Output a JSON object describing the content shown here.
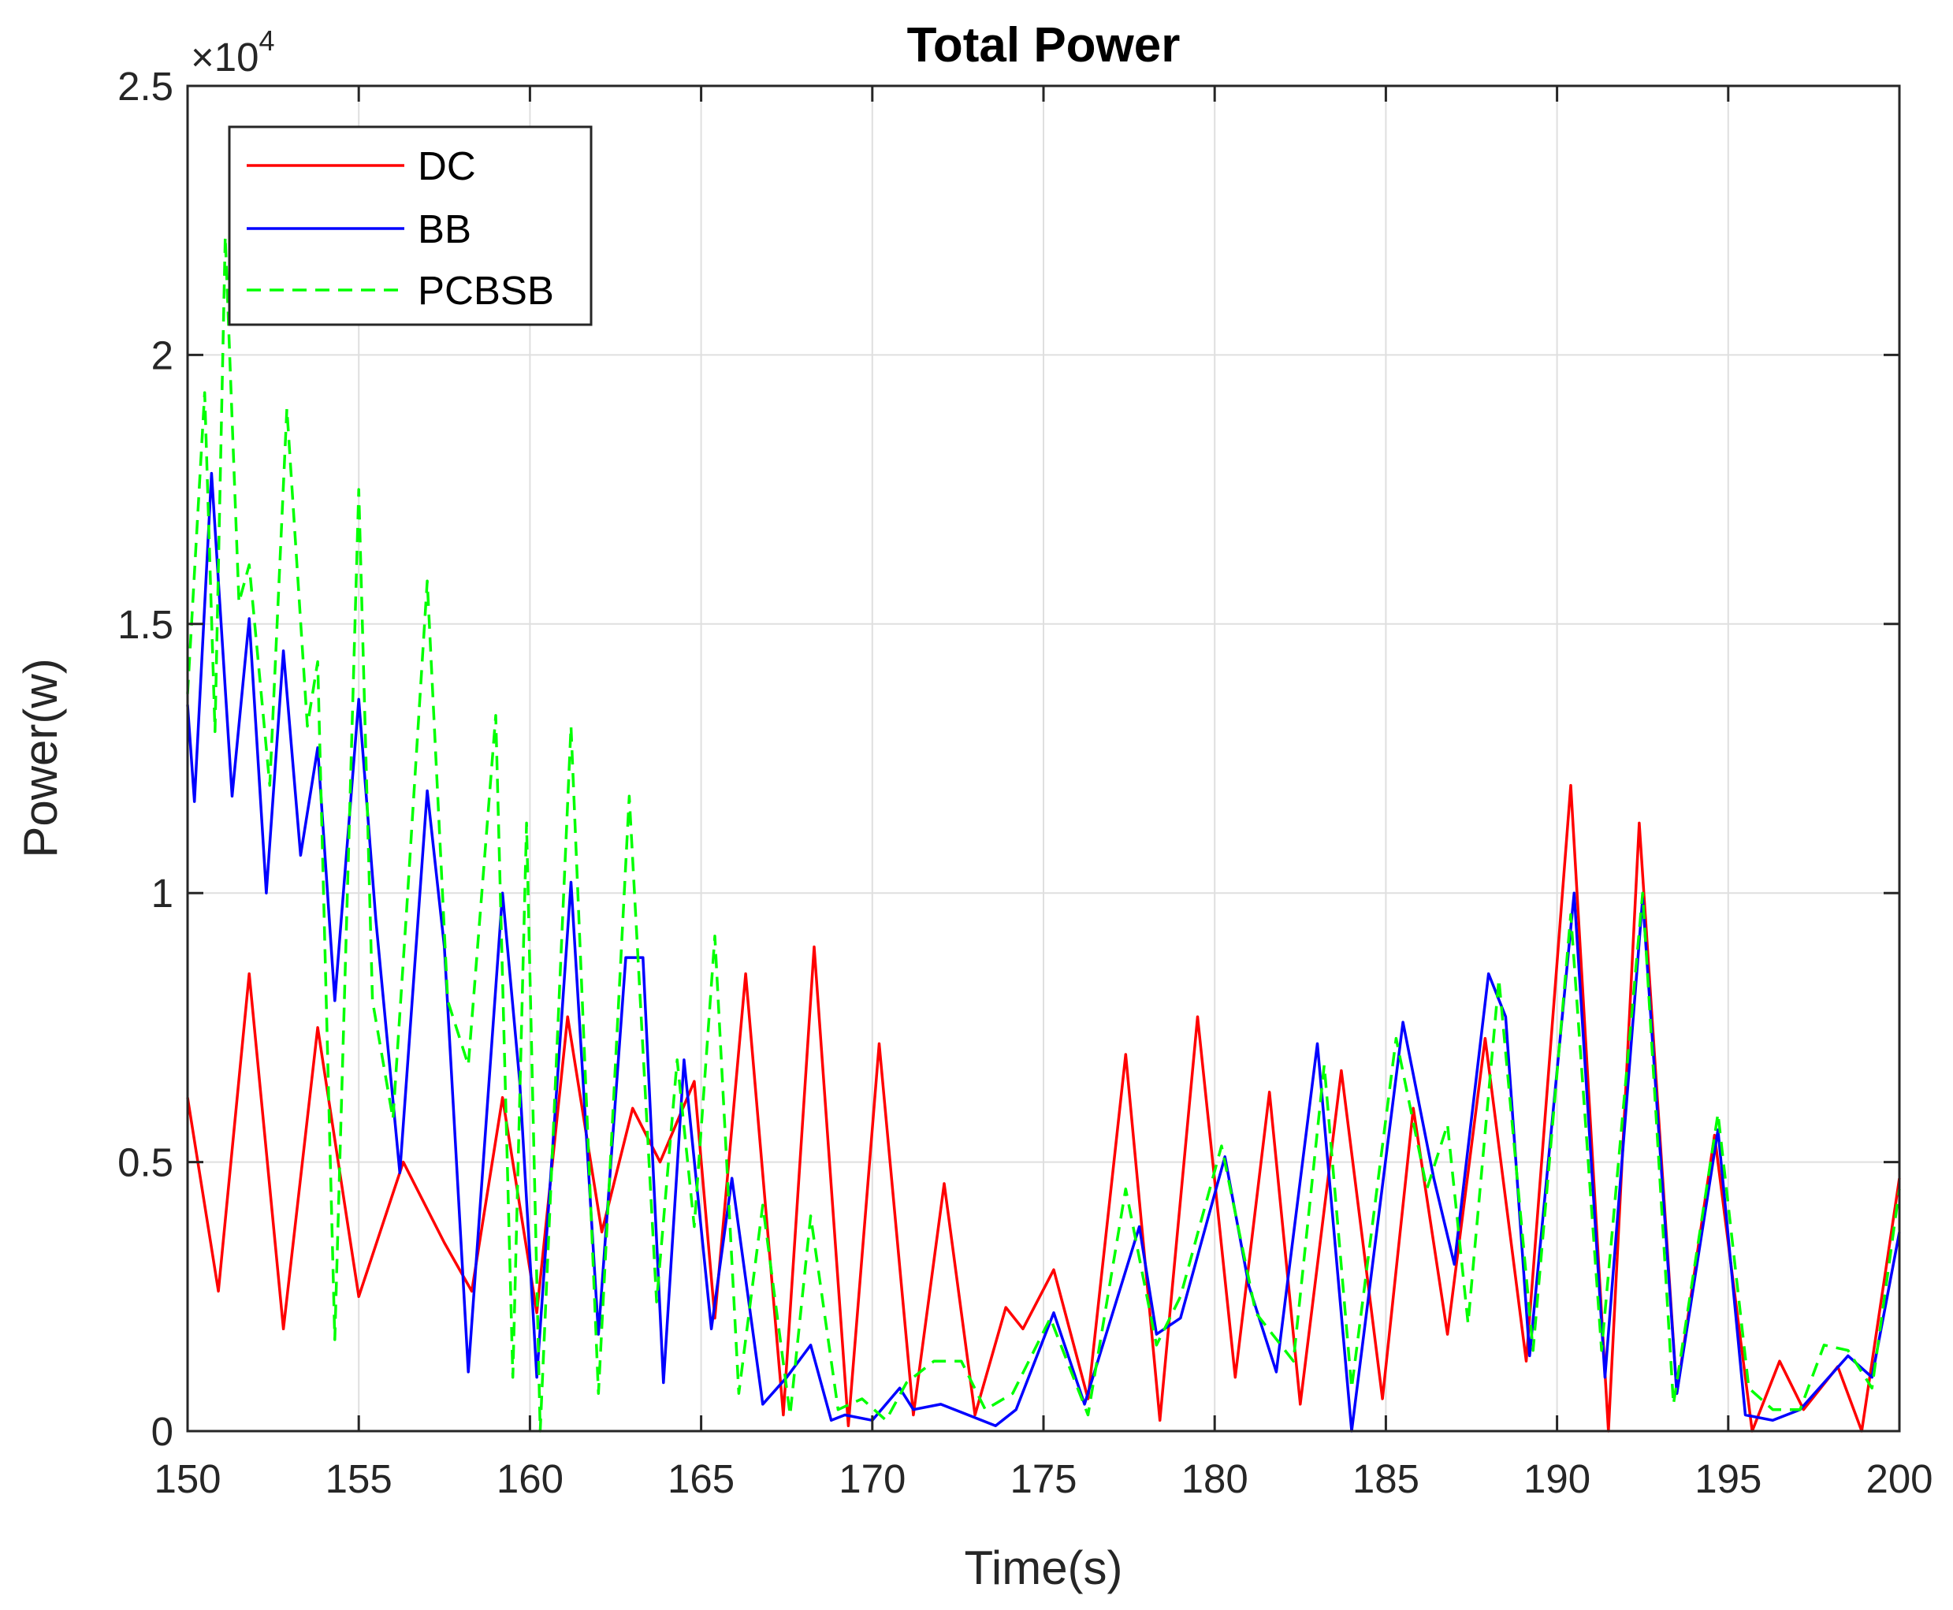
{
  "chart_data": {
    "type": "line",
    "title": "Total Power",
    "xlabel": "Time(s)",
    "ylabel": "Power(w)",
    "xlim": [
      150,
      200
    ],
    "ylim": [
      0,
      25000
    ],
    "x_ticks": [
      150,
      155,
      160,
      165,
      170,
      175,
      180,
      185,
      190,
      195,
      200
    ],
    "x_tick_labels": [
      "150",
      "155",
      "160",
      "165",
      "170",
      "175",
      "180",
      "185",
      "190",
      "195",
      "200"
    ],
    "y_ticks": [
      0,
      5000,
      10000,
      15000,
      20000,
      25000
    ],
    "y_tick_labels": [
      "0",
      "0.5",
      "1",
      "1.5",
      "2",
      "2.5"
    ],
    "y_exponent_base": "×10",
    "y_exponent_power": "4",
    "grid": true,
    "legend_position": "top-left",
    "series": [
      {
        "name": "DC",
        "color": "#ff0000",
        "dash": "solid",
        "x": [
          150,
          150.9,
          151.8,
          152.8,
          153.8,
          155,
          156.3,
          157.5,
          158.3,
          159.2,
          160.2,
          161.1,
          162.1,
          163,
          163.8,
          164.8,
          165.4,
          166.3,
          167.4,
          168.3,
          169.3,
          170.2,
          171.2,
          172.1,
          173,
          173.9,
          174.4,
          175.3,
          176.3,
          177.4,
          178.4,
          179.5,
          180.6,
          181.6,
          182.5,
          183.7,
          184.9,
          185.8,
          186.8,
          187.9,
          189.1,
          190.4,
          191.5,
          192.4,
          193.5,
          194.6,
          195.7,
          196.5,
          197.2,
          198.2,
          198.9,
          200
        ],
        "values": [
          6200,
          2600,
          8500,
          1900,
          7500,
          2500,
          5000,
          3500,
          2600,
          6200,
          2200,
          7700,
          3700,
          6000,
          5000,
          6500,
          2100,
          8500,
          300,
          9000,
          100,
          7200,
          300,
          4600,
          300,
          2300,
          1900,
          3000,
          600,
          7000,
          200,
          7700,
          1000,
          6300,
          500,
          6700,
          600,
          6000,
          1800,
          7300,
          1300,
          12000,
          0,
          11300,
          700,
          5500,
          0,
          1300,
          400,
          1200,
          0,
          4700
        ]
      },
      {
        "name": "BB",
        "color": "#0000ff",
        "dash": "solid",
        "x": [
          150,
          150.2,
          150.7,
          151.3,
          151.8,
          152.3,
          152.8,
          153.3,
          153.8,
          154.3,
          155,
          155.5,
          156.2,
          157,
          157.5,
          158.2,
          159.2,
          159.7,
          160.2,
          161.2,
          162,
          162.8,
          163.3,
          163.9,
          164.5,
          165.3,
          165.9,
          166.8,
          167.5,
          168.2,
          168.8,
          169.2,
          170,
          170.8,
          171.2,
          172,
          172.8,
          173.6,
          174.2,
          175.3,
          176.2,
          177.8,
          178.3,
          179,
          180.3,
          181,
          181.8,
          183,
          184,
          185.5,
          186.4,
          187,
          188,
          188.5,
          189.2,
          190.5,
          191.4,
          192.5,
          193.5,
          194.7,
          195.5,
          196.3,
          197.1,
          198.5,
          199.2,
          200
        ],
        "values": [
          13500,
          11700,
          17800,
          11800,
          15100,
          10000,
          14500,
          10700,
          12700,
          8000,
          13600,
          9500,
          4800,
          11900,
          9000,
          1100,
          10000,
          6500,
          1000,
          10200,
          1800,
          8800,
          8800,
          900,
          6900,
          1900,
          4700,
          500,
          1000,
          1600,
          200,
          300,
          200,
          800,
          400,
          500,
          300,
          100,
          400,
          2200,
          500,
          3800,
          1800,
          2100,
          5100,
          2700,
          1100,
          7200,
          0,
          7600,
          4700,
          3100,
          8500,
          7700,
          1400,
          10000,
          1000,
          9900,
          700,
          5600,
          300,
          200,
          400,
          1400,
          1000,
          3700
        ]
      },
      {
        "name": "PCBSB",
        "color": "#00ff00",
        "dash": "dashed",
        "x": [
          150,
          150.5,
          150.8,
          151.1,
          151.5,
          151.8,
          152.4,
          152.9,
          153.5,
          153.8,
          154.3,
          155,
          155.4,
          156,
          156.4,
          157,
          157.6,
          158.2,
          159,
          159.5,
          159.9,
          160.3,
          161.2,
          162,
          162.9,
          163.7,
          164.3,
          164.8,
          165.4,
          166.1,
          166.8,
          167.6,
          168.2,
          169,
          169.7,
          170.4,
          171,
          171.8,
          172.6,
          173.3,
          174.1,
          175.2,
          176.3,
          177.4,
          178.3,
          179,
          180.2,
          181.2,
          182.3,
          183.2,
          184,
          185.3,
          186.2,
          186.8,
          187.4,
          188.3,
          189.3,
          190.4,
          191.3,
          192.5,
          193.4,
          194.7,
          195.6,
          196.3,
          197.1,
          197.8,
          198.5,
          199.2,
          200
        ],
        "values": [
          13700,
          19300,
          13000,
          22200,
          15400,
          16100,
          12000,
          19000,
          13100,
          14300,
          1700,
          17500,
          8000,
          5800,
          9700,
          15800,
          8000,
          6800,
          13300,
          1000,
          11300,
          0,
          13100,
          700,
          11800,
          2400,
          6900,
          3800,
          9200,
          700,
          4200,
          300,
          4000,
          400,
          600,
          200,
          900,
          1300,
          1300,
          400,
          700,
          2100,
          300,
          4500,
          1600,
          2500,
          5300,
          2200,
          1300,
          6800,
          800,
          7300,
          4500,
          5700,
          2000,
          8400,
          1500,
          9600,
          1500,
          10000,
          500,
          5900,
          800,
          400,
          400,
          1600,
          1500,
          800,
          4500
        ]
      }
    ]
  }
}
